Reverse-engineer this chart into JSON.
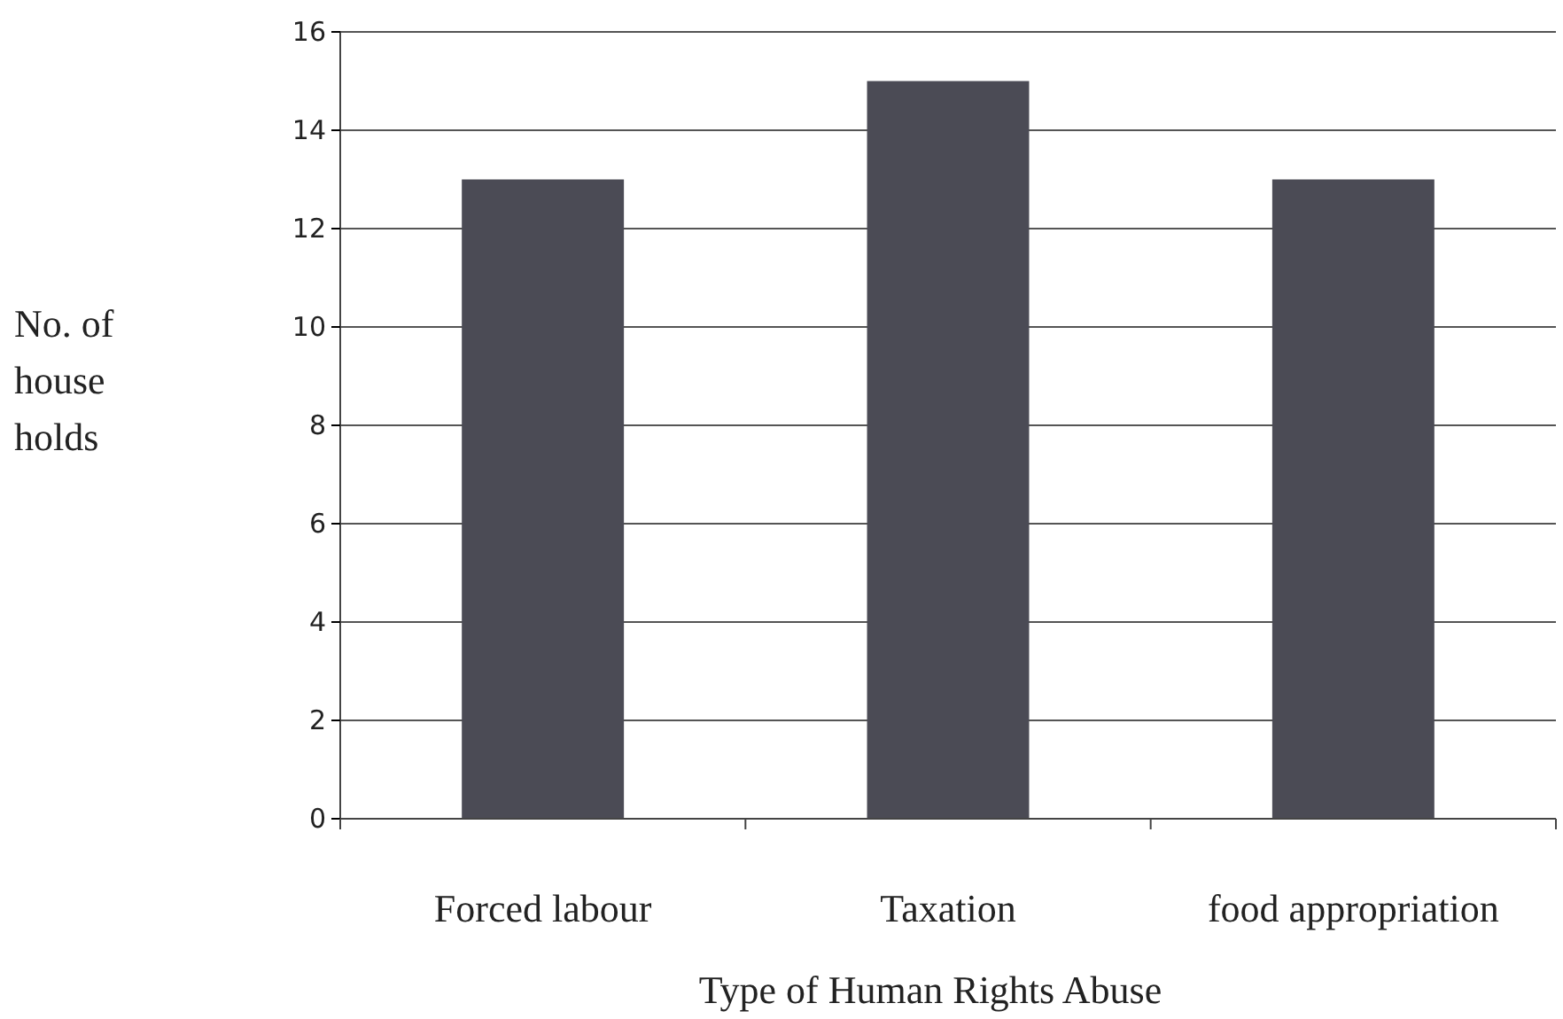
{
  "chart_data": {
    "type": "bar",
    "xlabel": "Type of Human Rights Abuse",
    "ylabel": "No. of house holds",
    "categories": [
      "Forced labour",
      "Taxation",
      "food appropriation"
    ],
    "values": [
      13,
      15,
      13
    ],
    "color": "#4b4b55",
    "ylim": [
      0,
      16
    ],
    "yticks": [
      0,
      2,
      4,
      6,
      8,
      10,
      12,
      14,
      16
    ],
    "grid": "y"
  }
}
